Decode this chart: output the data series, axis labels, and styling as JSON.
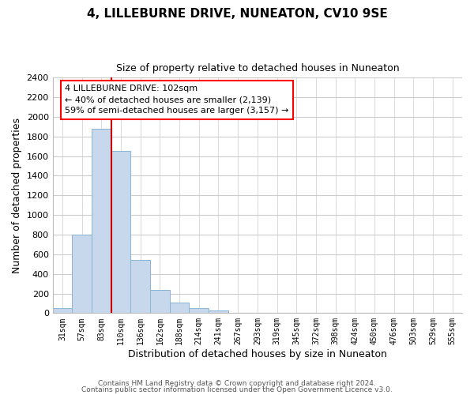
{
  "title": "4, LILLEBURNE DRIVE, NUNEATON, CV10 9SE",
  "subtitle": "Size of property relative to detached houses in Nuneaton",
  "xlabel": "Distribution of detached houses by size in Nuneaton",
  "ylabel": "Number of detached properties",
  "bar_labels": [
    "31sqm",
    "57sqm",
    "83sqm",
    "110sqm",
    "136sqm",
    "162sqm",
    "188sqm",
    "214sqm",
    "241sqm",
    "267sqm",
    "293sqm",
    "319sqm",
    "345sqm",
    "372sqm",
    "398sqm",
    "424sqm",
    "450sqm",
    "476sqm",
    "503sqm",
    "529sqm",
    "555sqm"
  ],
  "bar_heights": [
    55,
    800,
    1880,
    1650,
    540,
    235,
    110,
    55,
    30,
    5,
    5,
    5,
    0,
    5,
    0,
    0,
    0,
    0,
    0,
    0,
    0
  ],
  "bar_color": "#c8d8ec",
  "bar_edge_color": "#8ab4d4",
  "property_line_index": 3,
  "property_line_color": "#cc0000",
  "ylim": [
    0,
    2400
  ],
  "yticks": [
    0,
    200,
    400,
    600,
    800,
    1000,
    1200,
    1400,
    1600,
    1800,
    2000,
    2200,
    2400
  ],
  "annotation_title": "4 LILLEBURNE DRIVE: 102sqm",
  "annotation_line1": "← 40% of detached houses are smaller (2,139)",
  "annotation_line2": "59% of semi-detached houses are larger (3,157) →",
  "footnote1": "Contains HM Land Registry data © Crown copyright and database right 2024.",
  "footnote2": "Contains public sector information licensed under the Open Government Licence v3.0.",
  "grid_color": "#cccccc",
  "background_color": "#ffffff",
  "fig_width": 6.0,
  "fig_height": 5.0
}
